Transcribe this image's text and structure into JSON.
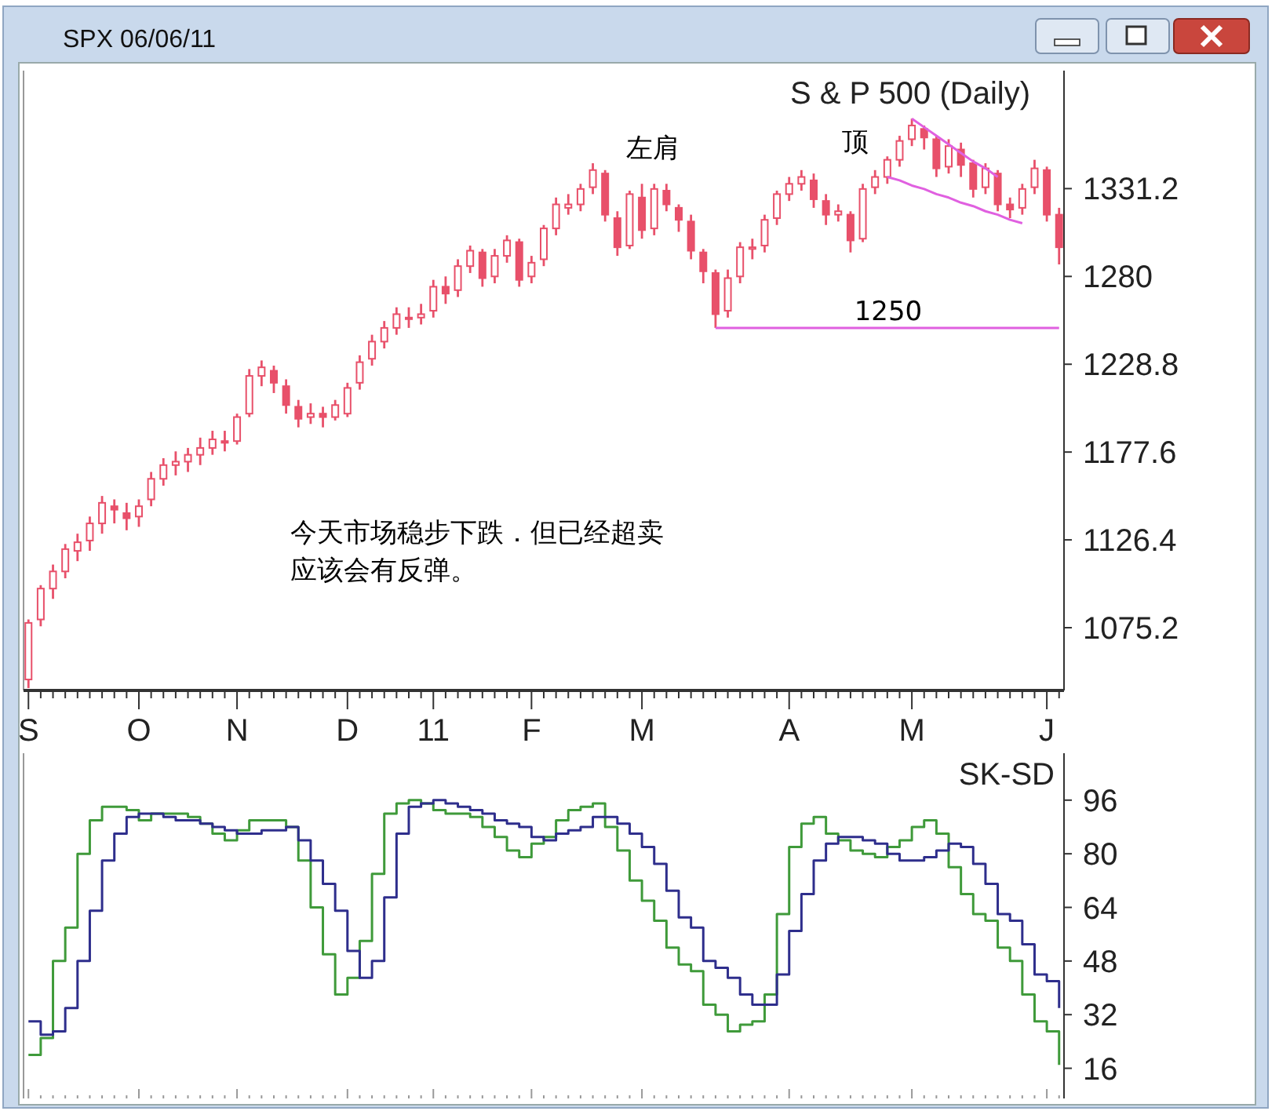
{
  "chart_data": [
    {
      "type": "candlestick",
      "title": "S & P 500 (Daily)",
      "subtitle": "SPX 06/06/11",
      "color": "#e8506a",
      "categories": [
        "S",
        null,
        null,
        null,
        null,
        null,
        null,
        null,
        null,
        "O",
        null,
        null,
        null,
        null,
        null,
        null,
        null,
        "N",
        null,
        null,
        null,
        null,
        null,
        null,
        null,
        null,
        "D",
        null,
        null,
        null,
        null,
        null,
        null,
        "11",
        null,
        null,
        null,
        null,
        null,
        null,
        null,
        "F",
        null,
        null,
        null,
        null,
        null,
        null,
        null,
        null,
        "M",
        null,
        null,
        null,
        null,
        null,
        null,
        null,
        null,
        null,
        null,
        null,
        "A",
        null,
        null,
        null,
        null,
        null,
        null,
        null,
        null,
        null,
        "M",
        null,
        null,
        null,
        null,
        null,
        null,
        null,
        null,
        null,
        null,
        "J",
        null
      ],
      "ohlc": [
        [
          1045,
          1080,
          1040,
          1078
        ],
        [
          1080,
          1100,
          1076,
          1098
        ],
        [
          1098,
          1112,
          1092,
          1108
        ],
        [
          1108,
          1124,
          1104,
          1121
        ],
        [
          1120,
          1130,
          1114,
          1125
        ],
        [
          1126,
          1140,
          1120,
          1136
        ],
        [
          1136,
          1152,
          1130,
          1148
        ],
        [
          1146,
          1150,
          1136,
          1144
        ],
        [
          1142,
          1148,
          1132,
          1139
        ],
        [
          1140,
          1150,
          1134,
          1146
        ],
        [
          1150,
          1166,
          1146,
          1162
        ],
        [
          1162,
          1174,
          1158,
          1170
        ],
        [
          1170,
          1178,
          1164,
          1172
        ],
        [
          1172,
          1180,
          1166,
          1176
        ],
        [
          1176,
          1186,
          1170,
          1180
        ],
        [
          1180,
          1190,
          1176,
          1185
        ],
        [
          1184,
          1190,
          1178,
          1183
        ],
        [
          1184,
          1200,
          1182,
          1198
        ],
        [
          1200,
          1226,
          1198,
          1222
        ],
        [
          1222,
          1231,
          1216,
          1227
        ],
        [
          1225,
          1228,
          1212,
          1218
        ],
        [
          1216,
          1220,
          1200,
          1205
        ],
        [
          1204,
          1208,
          1192,
          1197
        ],
        [
          1198,
          1206,
          1194,
          1200
        ],
        [
          1200,
          1204,
          1192,
          1198
        ],
        [
          1198,
          1208,
          1196,
          1205
        ],
        [
          1200,
          1218,
          1198,
          1215
        ],
        [
          1218,
          1234,
          1214,
          1230
        ],
        [
          1232,
          1246,
          1228,
          1242
        ],
        [
          1242,
          1254,
          1238,
          1250
        ],
        [
          1250,
          1262,
          1246,
          1258
        ],
        [
          1256,
          1262,
          1250,
          1256
        ],
        [
          1256,
          1264,
          1252,
          1258
        ],
        [
          1260,
          1278,
          1256,
          1274
        ],
        [
          1274,
          1280,
          1264,
          1270
        ],
        [
          1272,
          1290,
          1268,
          1286
        ],
        [
          1286,
          1298,
          1282,
          1295
        ],
        [
          1294,
          1296,
          1274,
          1279
        ],
        [
          1280,
          1296,
          1276,
          1292
        ],
        [
          1292,
          1304,
          1288,
          1301
        ],
        [
          1300,
          1302,
          1274,
          1278
        ],
        [
          1280,
          1292,
          1276,
          1288
        ],
        [
          1290,
          1310,
          1286,
          1308
        ],
        [
          1308,
          1326,
          1304,
          1322
        ],
        [
          1320,
          1328,
          1316,
          1322
        ],
        [
          1322,
          1334,
          1318,
          1331
        ],
        [
          1332,
          1346,
          1328,
          1342
        ],
        [
          1340,
          1342,
          1312,
          1316
        ],
        [
          1314,
          1318,
          1292,
          1297
        ],
        [
          1298,
          1330,
          1296,
          1328
        ],
        [
          1326,
          1334,
          1302,
          1307
        ],
        [
          1308,
          1334,
          1304,
          1331
        ],
        [
          1330,
          1334,
          1318,
          1322
        ],
        [
          1320,
          1322,
          1306,
          1313
        ],
        [
          1312,
          1316,
          1290,
          1295
        ],
        [
          1294,
          1296,
          1276,
          1283
        ],
        [
          1282,
          1284,
          1250,
          1258
        ],
        [
          1260,
          1284,
          1256,
          1279
        ],
        [
          1280,
          1300,
          1276,
          1297
        ],
        [
          1296,
          1302,
          1290,
          1297
        ],
        [
          1298,
          1316,
          1294,
          1313
        ],
        [
          1314,
          1330,
          1310,
          1328
        ],
        [
          1328,
          1338,
          1324,
          1334
        ],
        [
          1334,
          1342,
          1330,
          1338
        ],
        [
          1336,
          1340,
          1320,
          1325
        ],
        [
          1324,
          1328,
          1310,
          1316
        ],
        [
          1316,
          1322,
          1312,
          1318
        ],
        [
          1316,
          1318,
          1294,
          1301
        ],
        [
          1302,
          1334,
          1300,
          1331
        ],
        [
          1332,
          1342,
          1328,
          1338
        ],
        [
          1338,
          1350,
          1334,
          1348
        ],
        [
          1348,
          1362,
          1344,
          1359
        ],
        [
          1360,
          1372,
          1356,
          1368
        ],
        [
          1366,
          1368,
          1354,
          1361
        ],
        [
          1360,
          1362,
          1338,
          1343
        ],
        [
          1344,
          1360,
          1340,
          1356
        ],
        [
          1354,
          1358,
          1338,
          1345
        ],
        [
          1346,
          1348,
          1326,
          1331
        ],
        [
          1332,
          1346,
          1328,
          1343
        ],
        [
          1340,
          1342,
          1318,
          1322
        ],
        [
          1322,
          1326,
          1314,
          1319
        ],
        [
          1320,
          1334,
          1316,
          1331
        ],
        [
          1332,
          1348,
          1328,
          1343
        ],
        [
          1342,
          1344,
          1312,
          1316
        ],
        [
          1316,
          1320,
          1287,
          1297
        ]
      ],
      "series": [
        {
          "type": "line",
          "color": "#e060e0",
          "values": [
            null,
            null,
            null,
            null,
            null,
            null,
            null,
            null,
            null,
            null,
            null,
            null,
            null,
            null,
            null,
            null,
            null,
            null,
            null,
            null,
            null,
            null,
            null,
            null,
            null,
            null,
            null,
            null,
            null,
            null,
            null,
            null,
            null,
            null,
            null,
            null,
            null,
            null,
            null,
            null,
            null,
            null,
            null,
            null,
            null,
            null,
            null,
            null,
            null,
            null,
            null,
            null,
            null,
            null,
            null,
            null,
            1250,
            1250,
            1250,
            1250,
            1250,
            1250,
            1250,
            1250,
            1250,
            1250,
            1250,
            1250,
            1250,
            1250,
            1250,
            1250,
            1250,
            1250,
            1250,
            1250,
            1250,
            1250,
            1250,
            1250,
            1250,
            1250,
            1250,
            1250,
            1250
          ]
        },
        {
          "type": "line",
          "color": "#e060e0",
          "values": [
            null,
            null,
            null,
            null,
            null,
            null,
            null,
            null,
            null,
            null,
            null,
            null,
            null,
            null,
            null,
            null,
            null,
            null,
            null,
            null,
            null,
            null,
            null,
            null,
            null,
            null,
            null,
            null,
            null,
            null,
            null,
            null,
            null,
            null,
            null,
            null,
            null,
            null,
            null,
            null,
            null,
            null,
            null,
            null,
            null,
            null,
            null,
            null,
            null,
            null,
            null,
            null,
            null,
            null,
            null,
            null,
            null,
            null,
            null,
            null,
            null,
            null,
            null,
            null,
            null,
            null,
            null,
            null,
            null,
            null,
            null,
            null,
            1372,
            1367,
            1362,
            1357,
            1352,
            1347,
            1343,
            1338,
            null,
            null,
            null,
            null,
            null
          ]
        },
        {
          "type": "line",
          "color": "#e060e0",
          "values": [
            null,
            null,
            null,
            null,
            null,
            null,
            null,
            null,
            null,
            null,
            null,
            null,
            null,
            null,
            null,
            null,
            null,
            null,
            null,
            null,
            null,
            null,
            null,
            null,
            null,
            null,
            null,
            null,
            null,
            null,
            null,
            null,
            null,
            null,
            null,
            null,
            null,
            null,
            null,
            null,
            null,
            null,
            null,
            null,
            null,
            null,
            null,
            null,
            null,
            null,
            null,
            null,
            null,
            null,
            null,
            null,
            null,
            null,
            null,
            null,
            null,
            null,
            null,
            null,
            null,
            null,
            null,
            null,
            null,
            null,
            1338,
            1336,
            1333,
            1331,
            1328,
            1326,
            1323,
            1321,
            1318,
            1316,
            1313,
            1311,
            null,
            null,
            null
          ]
        }
      ],
      "annotations": [
        "左肩",
        "顶",
        "1250",
        "今天市场稳步下跌．但已经超卖应该会有反弹。"
      ],
      "ylim": [
        1038.6,
        1400
      ],
      "yticks": [
        1075.2,
        1126.4,
        1177.6,
        1228.8,
        1280,
        1331.2
      ]
    },
    {
      "type": "step",
      "title": "SK-SD",
      "ylim": [
        7,
        110
      ],
      "yticks": [
        16,
        32,
        48,
        64,
        80,
        96
      ],
      "tick_labels": "y",
      "categories": [
        "S",
        null,
        null,
        null,
        null,
        null,
        null,
        null,
        null,
        "O",
        null,
        null,
        null,
        null,
        null,
        null,
        null,
        "N",
        null,
        null,
        null,
        null,
        null,
        null,
        null,
        null,
        "D",
        null,
        null,
        null,
        null,
        null,
        null,
        "11",
        null,
        null,
        null,
        null,
        null,
        null,
        null,
        "F",
        null,
        null,
        null,
        null,
        null,
        null,
        null,
        null,
        "M",
        null,
        null,
        null,
        null,
        null,
        null,
        null,
        null,
        null,
        null,
        null,
        "A",
        null,
        null,
        null,
        null,
        null,
        null,
        null,
        null,
        null,
        "M",
        null,
        null,
        null,
        null,
        null,
        null,
        null,
        null,
        null,
        null,
        "J",
        null
      ],
      "series": [
        {
          "color": "#3f9a3a",
          "values": [
            20,
            25,
            48,
            58,
            80,
            90,
            94,
            94,
            93,
            90,
            92,
            92,
            92,
            91,
            89,
            86,
            84,
            87,
            90,
            90,
            90,
            88,
            78,
            64,
            50,
            38,
            43,
            54,
            74,
            92,
            95,
            96,
            95,
            93,
            92,
            92,
            91,
            88,
            85,
            81,
            79,
            83,
            85,
            90,
            93,
            94,
            95,
            88,
            81,
            72,
            66,
            60,
            52,
            47,
            45,
            35,
            32,
            27,
            29,
            30,
            38,
            62,
            82,
            89,
            91,
            86,
            84,
            81,
            80,
            79,
            82,
            84,
            88,
            90,
            86,
            76,
            68,
            62,
            60,
            52,
            48,
            38,
            30,
            27,
            17
          ]
        },
        {
          "color": "#2e2e8c",
          "values": [
            30,
            26,
            27,
            34,
            48,
            63,
            78,
            86,
            91,
            92,
            92,
            91,
            90,
            90,
            89,
            88,
            87,
            86,
            86,
            87,
            87,
            88,
            84,
            78,
            71,
            63,
            51,
            43,
            48,
            67,
            86,
            94,
            95,
            96,
            95,
            94,
            93,
            92,
            90,
            89,
            88,
            85,
            84,
            86,
            87,
            88,
            91,
            91,
            89,
            86,
            82,
            77,
            69,
            61,
            58,
            48,
            46,
            43,
            38,
            35,
            35,
            44,
            57,
            68,
            78,
            83,
            85,
            85,
            84,
            83,
            80,
            78,
            78,
            79,
            81,
            83,
            82,
            77,
            71,
            62,
            60,
            53,
            44,
            42,
            34
          ]
        }
      ]
    }
  ]
}
